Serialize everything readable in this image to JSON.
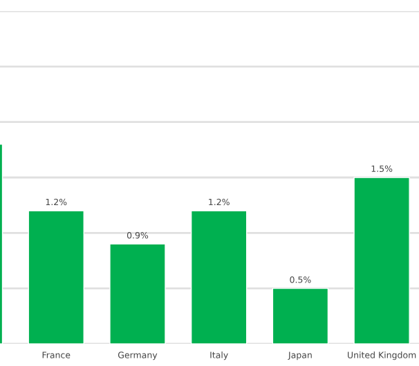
{
  "chart_data": {
    "type": "bar",
    "categories": [
      null,
      "France",
      "Germany",
      "Italy",
      "Japan",
      "United Kingdom"
    ],
    "values": [
      1.8,
      1.2,
      0.9,
      1.2,
      0.5,
      1.5
    ],
    "value_labels": [
      null,
      "1.2%",
      "0.9%",
      "1.2%",
      "0.5%",
      "1.5%"
    ],
    "color": "#00b050",
    "ylim": [
      0,
      3
    ],
    "yticks": [
      {
        "value": 0,
        "label": null
      },
      {
        "value": 0.5,
        "label": null
      },
      {
        "value": 1,
        "label": null
      },
      {
        "value": 1.5,
        "label": null
      },
      {
        "value": 2,
        "label": null
      },
      {
        "value": 2.5,
        "label": null
      },
      {
        "value": 3,
        "label": null
      }
    ],
    "grid": "y",
    "tick_labels": "x"
  }
}
